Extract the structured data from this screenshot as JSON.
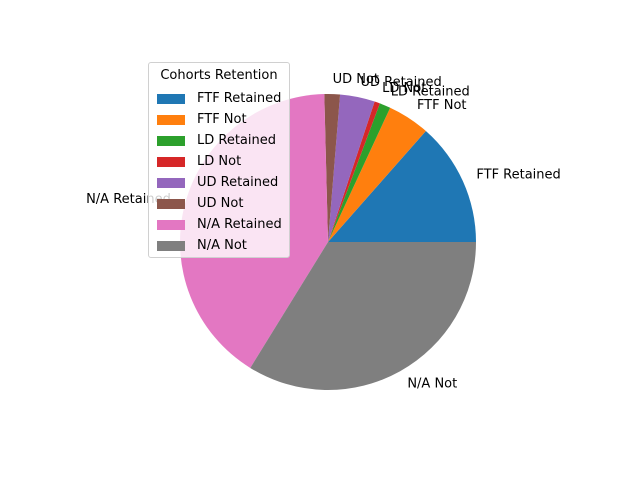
{
  "chart_data": {
    "type": "pie",
    "title": "",
    "legend_title": "Cohorts Retention",
    "legend_placement": "upper-left",
    "slices": [
      {
        "label": "FTF Retained",
        "value": 13.5,
        "color": "#1f77b4"
      },
      {
        "label": "FTF Not",
        "value": 4.6,
        "color": "#ff7f0e"
      },
      {
        "label": "LD Retained",
        "value": 1.2,
        "color": "#2ca02c"
      },
      {
        "label": "LD Not",
        "value": 0.6,
        "color": "#d62728"
      },
      {
        "label": "UD Retained",
        "value": 3.8,
        "color": "#9467bd"
      },
      {
        "label": "UD Not",
        "value": 1.7,
        "color": "#8c564b"
      },
      {
        "label": "N/A Retained",
        "value": 40.8,
        "color": "#e377c2"
      },
      {
        "label": "N/A Not",
        "value": 33.8,
        "color": "#7f7f7f"
      }
    ]
  }
}
